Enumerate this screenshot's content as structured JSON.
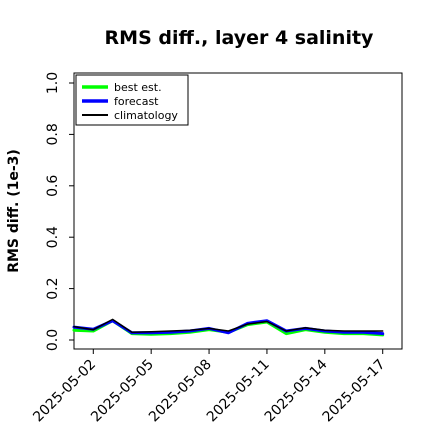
{
  "chart_data": {
    "type": "line",
    "title": "RMS diff., layer 4 salinity",
    "xlabel": "",
    "ylabel": "RMS diff. (1e-3)",
    "ylim": [
      0.0,
      1.0
    ],
    "yticks": [
      "0.0",
      "0.2",
      "0.4",
      "0.6",
      "0.8",
      "1.0"
    ],
    "ytick_values": [
      0.0,
      0.2,
      0.4,
      0.6,
      0.8,
      1.0
    ],
    "xlim": [
      "2025-04-31",
      "2025-05-18"
    ],
    "xticks": [
      "2025-05-02",
      "2025-05-05",
      "2025-05-08",
      "2025-05-11",
      "2025-05-14",
      "2025-05-17"
    ],
    "highlighted_xtick": "2025-05-08",
    "highlight_color": "#228b22",
    "grid": false,
    "legend_position": "top-left",
    "x": [
      "2025-05-01",
      "2025-05-02",
      "2025-05-03",
      "2025-05-04",
      "2025-05-05",
      "2025-05-06",
      "2025-05-07",
      "2025-05-08",
      "2025-05-09",
      "2025-05-10",
      "2025-05-11",
      "2025-05-12",
      "2025-05-13",
      "2025-05-14",
      "2025-05-15",
      "2025-05-16",
      "2025-05-17"
    ],
    "series": [
      {
        "name": "best est.",
        "color": "#00ff00",
        "width": 3,
        "values": [
          0.038,
          0.035,
          0.075,
          0.025,
          0.022,
          0.025,
          0.03,
          0.04,
          0.03,
          0.06,
          0.07,
          0.025,
          0.04,
          0.03,
          0.025,
          0.025,
          0.02
        ]
      },
      {
        "name": "forecast",
        "color": "#0000ff",
        "width": 3,
        "values": [
          0.05,
          0.042,
          0.075,
          0.028,
          0.028,
          0.03,
          0.035,
          0.045,
          0.028,
          0.065,
          0.075,
          0.035,
          0.045,
          0.035,
          0.03,
          0.03,
          0.025
        ]
      },
      {
        "name": "climatology",
        "color": "#000000",
        "width": 1.5,
        "values": [
          0.052,
          0.04,
          0.08,
          0.03,
          0.032,
          0.035,
          0.038,
          0.045,
          0.035,
          0.062,
          0.072,
          0.035,
          0.048,
          0.038,
          0.035,
          0.035,
          0.035
        ]
      }
    ]
  }
}
